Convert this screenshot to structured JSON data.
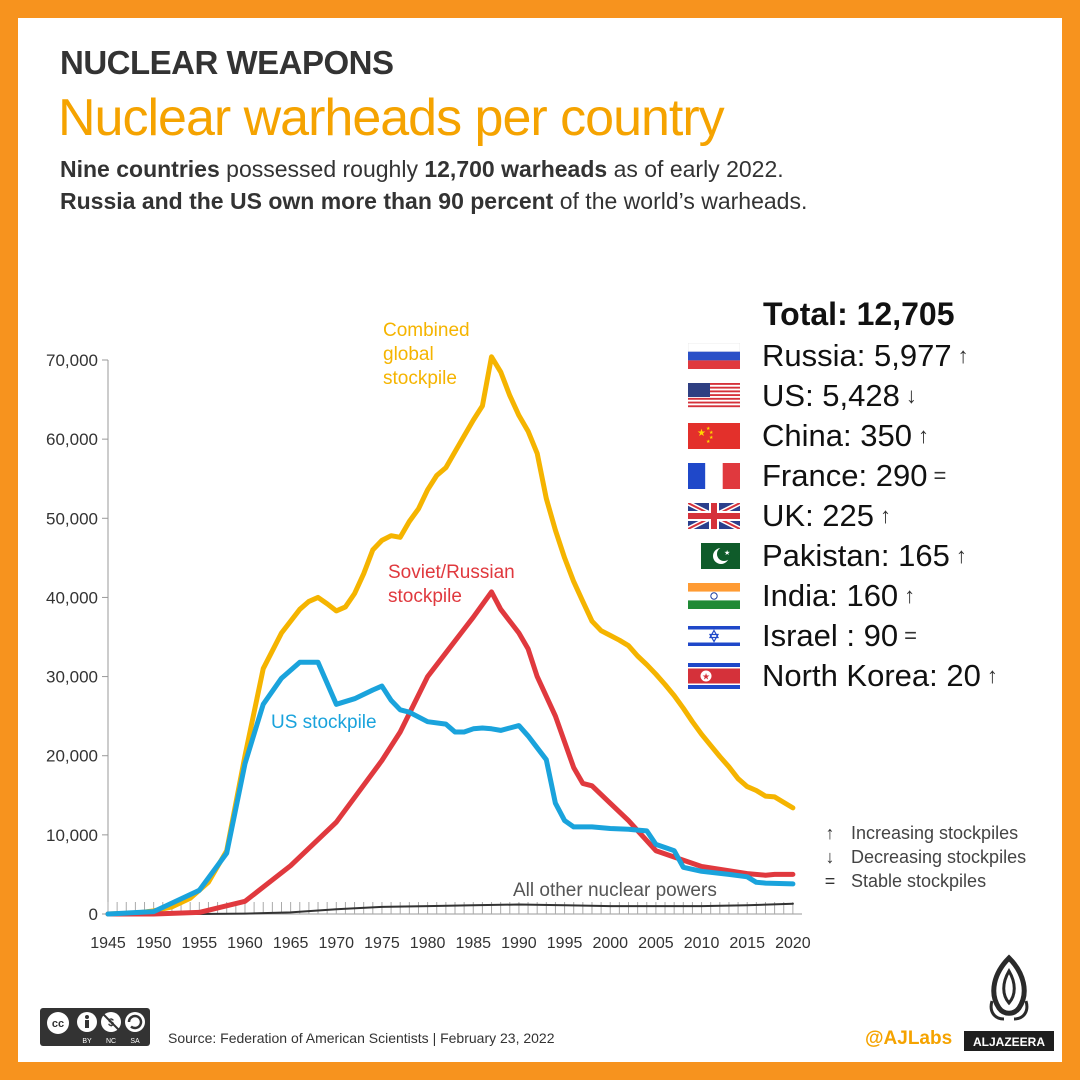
{
  "header": {
    "kicker": "NUCLEAR WEAPONS",
    "title": "Nuclear warheads per country",
    "subtitle1_bold1": "Nine countries",
    "subtitle1_text1": " possessed roughly ",
    "subtitle1_bold2": "12,700 warheads",
    "subtitle1_text2": " as of early 2022.",
    "subtitle2_bold": "Russia and the US own more than 90 percent",
    "subtitle2_text": " of the world’s warheads."
  },
  "legend": {
    "title": "Total: 12,705",
    "items": [
      {
        "label": "Russia: 5,977",
        "trend": "↑"
      },
      {
        "label": "US: 5,428",
        "trend": "↓"
      },
      {
        "label": "China: 350",
        "trend": "↑"
      },
      {
        "label": "France: 290",
        "trend": "="
      },
      {
        "label": "UK: 225",
        "trend": "↑"
      },
      {
        "label": "Pakistan: 165",
        "trend": "↑"
      },
      {
        "label": "India: 160",
        "trend": "↑"
      },
      {
        "label": "Israel   : 90",
        "trend": "="
      },
      {
        "label": "North Korea: 20",
        "trend": "↑"
      }
    ]
  },
  "key": [
    {
      "symbol": "↑",
      "label": "Increasing stockpiles"
    },
    {
      "symbol": "↓",
      "label": "Decreasing stockpiles"
    },
    {
      "symbol": "=",
      "label": "Stable stockpiles"
    }
  ],
  "footer": {
    "source": "Source: Federation of American Scientists | February 23, 2022",
    "handle": "@AJLabs",
    "logo_text": "ALJAZEERA",
    "license": [
      "BY",
      "NC",
      "SA"
    ]
  },
  "colors": {
    "combined": "#f5b400",
    "russia": "#e0393e",
    "us": "#1aa3dc",
    "others": "#333333",
    "accent": "#f5a300",
    "border": "#f7931e"
  },
  "chart_data": {
    "type": "line",
    "x_ticks": [
      "1945",
      "1950",
      "1955",
      "1960",
      "1965",
      "1970",
      "1975",
      "1980",
      "1985",
      "1990",
      "1995",
      "2000",
      "2005",
      "2010",
      "2015",
      "2020"
    ],
    "y_ticks": [
      "0",
      "10,000",
      "20,000",
      "30,000",
      "40,000",
      "50,000",
      "60,000",
      "70,000"
    ],
    "xlim": [
      1945,
      2021
    ],
    "ylim": [
      0,
      70000
    ],
    "series": [
      {
        "name": "Combined global stockpile",
        "label_lines": [
          "Combined",
          "global",
          "stockpile"
        ],
        "color": "#f5b400",
        "x": [
          1945,
          1948,
          1950,
          1952,
          1954,
          1956,
          1958,
          1960,
          1962,
          1964,
          1966,
          1967,
          1968,
          1969,
          1970,
          1971,
          1972,
          1973,
          1974,
          1975,
          1976,
          1977,
          1978,
          1979,
          1980,
          1981,
          1982,
          1983,
          1984,
          1985,
          1986,
          1987,
          1988,
          1989,
          1990,
          1991,
          1992,
          1993,
          1994,
          1995,
          1996,
          1997,
          1998,
          1999,
          2000,
          2001,
          2002,
          2003,
          2004,
          2005,
          2006,
          2007,
          2008,
          2009,
          2010,
          2011,
          2012,
          2013,
          2014,
          2015,
          2016,
          2017,
          2018,
          2019,
          2020
        ],
        "y": [
          0,
          100,
          400,
          900,
          2000,
          4000,
          8000,
          20000,
          31000,
          35500,
          38500,
          39500,
          40000,
          39200,
          38300,
          38800,
          40500,
          43000,
          46000,
          47200,
          47800,
          47600,
          49600,
          51200,
          53600,
          55400,
          56400,
          58400,
          60400,
          62400,
          64200,
          70400,
          68500,
          65500,
          63000,
          61000,
          58200,
          52500,
          48500,
          45000,
          42000,
          39500,
          37000,
          35800,
          35200,
          34600,
          33900,
          32600,
          31500,
          30300,
          29000,
          27600,
          26000,
          24300,
          22700,
          21300,
          19900,
          18600,
          17100,
          16100,
          15600,
          14900,
          14800,
          14100,
          13400
        ]
      },
      {
        "name": "Soviet/Russian stockpile",
        "label_lines": [
          "Soviet/Russian",
          "stockpile"
        ],
        "color": "#e0393e",
        "x": [
          1945,
          1950,
          1955,
          1960,
          1965,
          1970,
          1975,
          1977,
          1980,
          1982,
          1984,
          1985,
          1987,
          1988,
          1990,
          1991,
          1992,
          1994,
          1996,
          1997,
          1998,
          2000,
          2002,
          2005,
          2010,
          2015,
          2017,
          2018,
          2020
        ],
        "y": [
          0,
          5,
          200,
          1600,
          6100,
          11600,
          19400,
          23000,
          30000,
          33000,
          36000,
          37500,
          40700,
          38500,
          35500,
          33500,
          30000,
          25000,
          18500,
          16500,
          16200,
          14000,
          11800,
          8000,
          6000,
          5100,
          4900,
          5000,
          5000
        ]
      },
      {
        "name": "US stockpile",
        "label_lines": [
          "US stockpile"
        ],
        "color": "#1aa3dc",
        "x": [
          1945,
          1950,
          1955,
          1958,
          1960,
          1962,
          1964,
          1966,
          1968,
          1970,
          1972,
          1974,
          1975,
          1976,
          1977,
          1978,
          1980,
          1982,
          1983,
          1984,
          1985,
          1986,
          1987,
          1988,
          1989,
          1990,
          1991,
          1992,
          1993,
          1994,
          1995,
          1996,
          1998,
          2000,
          2002,
          2004,
          2005,
          2006,
          2007,
          2008,
          2010,
          2013,
          2015,
          2016,
          2017,
          2020
        ],
        "y": [
          0,
          300,
          3000,
          7700,
          19000,
          26500,
          29800,
          31800,
          31800,
          26500,
          27200,
          28300,
          28800,
          27000,
          25800,
          25500,
          24300,
          24000,
          23000,
          23000,
          23400,
          23500,
          23400,
          23200,
          23500,
          23800,
          22500,
          21000,
          19500,
          14000,
          11800,
          11000,
          11000,
          10800,
          10700,
          10500,
          8800,
          8400,
          8000,
          5900,
          5400,
          5000,
          4700,
          4000,
          3900,
          3800
        ]
      },
      {
        "name": "All other nuclear powers",
        "label_lines": [
          "All other nuclear powers"
        ],
        "color": "#333333",
        "x": [
          1945,
          1955,
          1960,
          1965,
          1970,
          1975,
          1980,
          1985,
          1990,
          1995,
          2000,
          2005,
          2010,
          2015,
          2020
        ],
        "y": [
          0,
          0,
          50,
          200,
          600,
          900,
          1000,
          1100,
          1200,
          1100,
          1000,
          1000,
          1000,
          1100,
          1300
        ]
      }
    ]
  }
}
